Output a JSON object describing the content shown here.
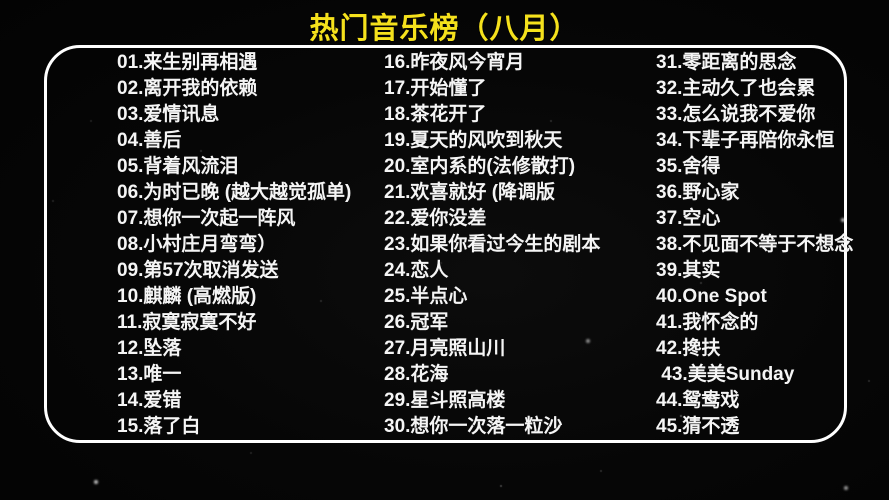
{
  "title": "热门音乐榜（八月）",
  "colors": {
    "accent_yellow": "#F5E11C",
    "text_white": "#F5F5F5",
    "border_white": "#FFFFFF",
    "background_black": "#060606"
  },
  "columns": [
    [
      "01.来生别再相遇",
      "02.离开我的依赖",
      "03.爱情讯息",
      "04.善后",
      "05.背着风流泪",
      "06.为时已晚 (越大越觉孤单)",
      "07.想你一次起一阵风",
      "08.小村庄月弯弯）",
      "09.第57次取消发送",
      "10.麒麟 (高燃版)",
      "11.寂寞寂寞不好",
      "12.坠落",
      "13.唯一",
      "14.爱错",
      "15.落了白"
    ],
    [
      "16.昨夜风今宵月",
      "17.开始懂了",
      "18.茶花开了",
      "19.夏天的风吹到秋天",
      "20.室内系的(法修散打)",
      "21.欢喜就好 (降调版",
      "22.爱你没差",
      "23.如果你看过今生的剧本",
      "24.恋人",
      "25.半点心",
      "26.冠军",
      "27.月亮照山川",
      "28.花海",
      "29.星斗照高楼",
      "30.想你一次落一粒沙"
    ],
    [
      "31.零距离的思念",
      "32.主动久了也会累",
      "33.怎么说我不爱你",
      "34.下辈子再陪你永恒",
      "35.舍得",
      "36.野心家",
      "37.空心",
      "38.不见面不等于不想念",
      "39.其实",
      "40.One Spot",
      "41.我怀念的",
      "42.搀扶",
      " 43.美美Sunday",
      "44.鸳鸯戏",
      "45.猜不透"
    ]
  ]
}
